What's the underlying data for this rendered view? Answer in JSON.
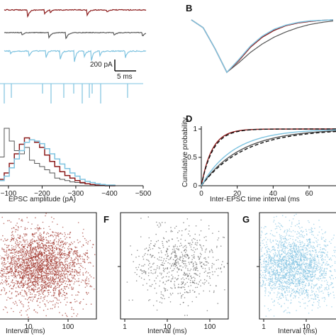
{
  "colors": {
    "red": "#8b1a1a",
    "gray": "#555555",
    "blue": "#7ec3e0",
    "red_points": "#a33a32",
    "gray_points": "#666666",
    "blue_points": "#8cc8e4",
    "black": "#111111"
  },
  "panels": {
    "B": {
      "letter": "B"
    },
    "D": {
      "letter": "D"
    },
    "F": {
      "letter": "F"
    },
    "G": {
      "letter": "G"
    }
  },
  "scale_bar": {
    "current": "200 pA",
    "time": "5 ms"
  },
  "chart_data": [
    {
      "id": "A-traces",
      "type": "line",
      "series": [
        {
          "color_key": "red",
          "trace": "red"
        },
        {
          "color_key": "gray",
          "trace": "gray"
        },
        {
          "color_key": "blue",
          "trace": "blue"
        },
        {
          "color_key": "blue",
          "trace": "blue-events"
        }
      ]
    },
    {
      "id": "B-average-epsc",
      "type": "line",
      "series": [
        {
          "color_key": "gray",
          "values": [
            0,
            -0.15,
            -0.55,
            -1.0,
            -0.82,
            -0.62,
            -0.46,
            -0.33,
            -0.23,
            -0.15,
            -0.09,
            -0.05,
            -0.02
          ]
        },
        {
          "color_key": "red",
          "values": [
            0,
            -0.15,
            -0.55,
            -1.0,
            -0.78,
            -0.52,
            -0.33,
            -0.2,
            -0.11,
            -0.06,
            -0.03,
            -0.01,
            0
          ]
        },
        {
          "color_key": "blue",
          "values": [
            0,
            -0.15,
            -0.55,
            -1.0,
            -0.76,
            -0.5,
            -0.31,
            -0.18,
            -0.1,
            -0.05,
            -0.02,
            -0.01,
            0
          ]
        }
      ]
    },
    {
      "id": "C-amplitude-histogram",
      "type": "line",
      "xlabel": "EPSC amplitude (pA)",
      "xticks": [
        "−100",
        "−200",
        "−300",
        "−400",
        "−500"
      ],
      "xlim": [
        -75,
        -500
      ],
      "categories": [
        -80,
        -95,
        -110,
        -125,
        -140,
        -155,
        -170,
        -185,
        -200,
        -215,
        -230,
        -245,
        -260,
        -275,
        -290,
        -305,
        -320,
        -335,
        -350,
        -365,
        -380,
        -395,
        -410
      ],
      "series": [
        {
          "color_key": "gray",
          "values": [
            0.45,
            0.9,
            0.7,
            0.55,
            0.5,
            0.6,
            0.4,
            0.35,
            0.3,
            0.25,
            0.2,
            0.12,
            0.1,
            0.08,
            0.06,
            0.05,
            0.04,
            0.03,
            0.02,
            0.01,
            0.01,
            0,
            0
          ]
        },
        {
          "color_key": "red",
          "values": [
            0.1,
            0.2,
            0.35,
            0.5,
            0.65,
            0.75,
            0.72,
            0.68,
            0.6,
            0.48,
            0.38,
            0.3,
            0.22,
            0.16,
            0.12,
            0.08,
            0.05,
            0.03,
            0.02,
            0.01,
            0.01,
            0,
            0
          ]
        },
        {
          "color_key": "blue",
          "values": [
            0.08,
            0.15,
            0.28,
            0.42,
            0.55,
            0.68,
            0.72,
            0.7,
            0.66,
            0.58,
            0.5,
            0.42,
            0.34,
            0.27,
            0.2,
            0.15,
            0.1,
            0.07,
            0.05,
            0.03,
            0.02,
            0.01,
            0.01
          ]
        }
      ]
    },
    {
      "id": "D-cumulative",
      "type": "line",
      "xlabel": "Inter-EPSC time interval (ms",
      "ylabel": "Cumulative probability",
      "xticks": [
        "0",
        "20",
        "40",
        "60"
      ],
      "yticks": [
        "0",
        "0.5",
        "1"
      ],
      "xlim": [
        0,
        75
      ],
      "ylim": [
        0,
        1
      ],
      "series": [
        {
          "color_key": "red",
          "tau": 6
        },
        {
          "color_key": "black",
          "tau": 6.5,
          "dashed": true
        },
        {
          "color_key": "gray",
          "tau": 22
        },
        {
          "color_key": "black",
          "tau": 24,
          "dashed": true
        },
        {
          "color_key": "blue",
          "tau": 18
        }
      ]
    },
    {
      "id": "E-scatter",
      "type": "scatter",
      "xlabel": "Interval (ms)",
      "xticks": [
        "10",
        "100"
      ],
      "color_key": "red_points",
      "log_x": true
    },
    {
      "id": "F-scatter",
      "type": "scatter",
      "xlabel": "Interval (ms)",
      "xticks": [
        "1",
        "10",
        "100"
      ],
      "color_key": "gray_points",
      "log_x": true
    },
    {
      "id": "G-scatter",
      "type": "scatter",
      "xlabel": "Interval (ms)",
      "xticks": [
        "1",
        "10"
      ],
      "color_key": "blue_points",
      "log_x": true
    }
  ]
}
